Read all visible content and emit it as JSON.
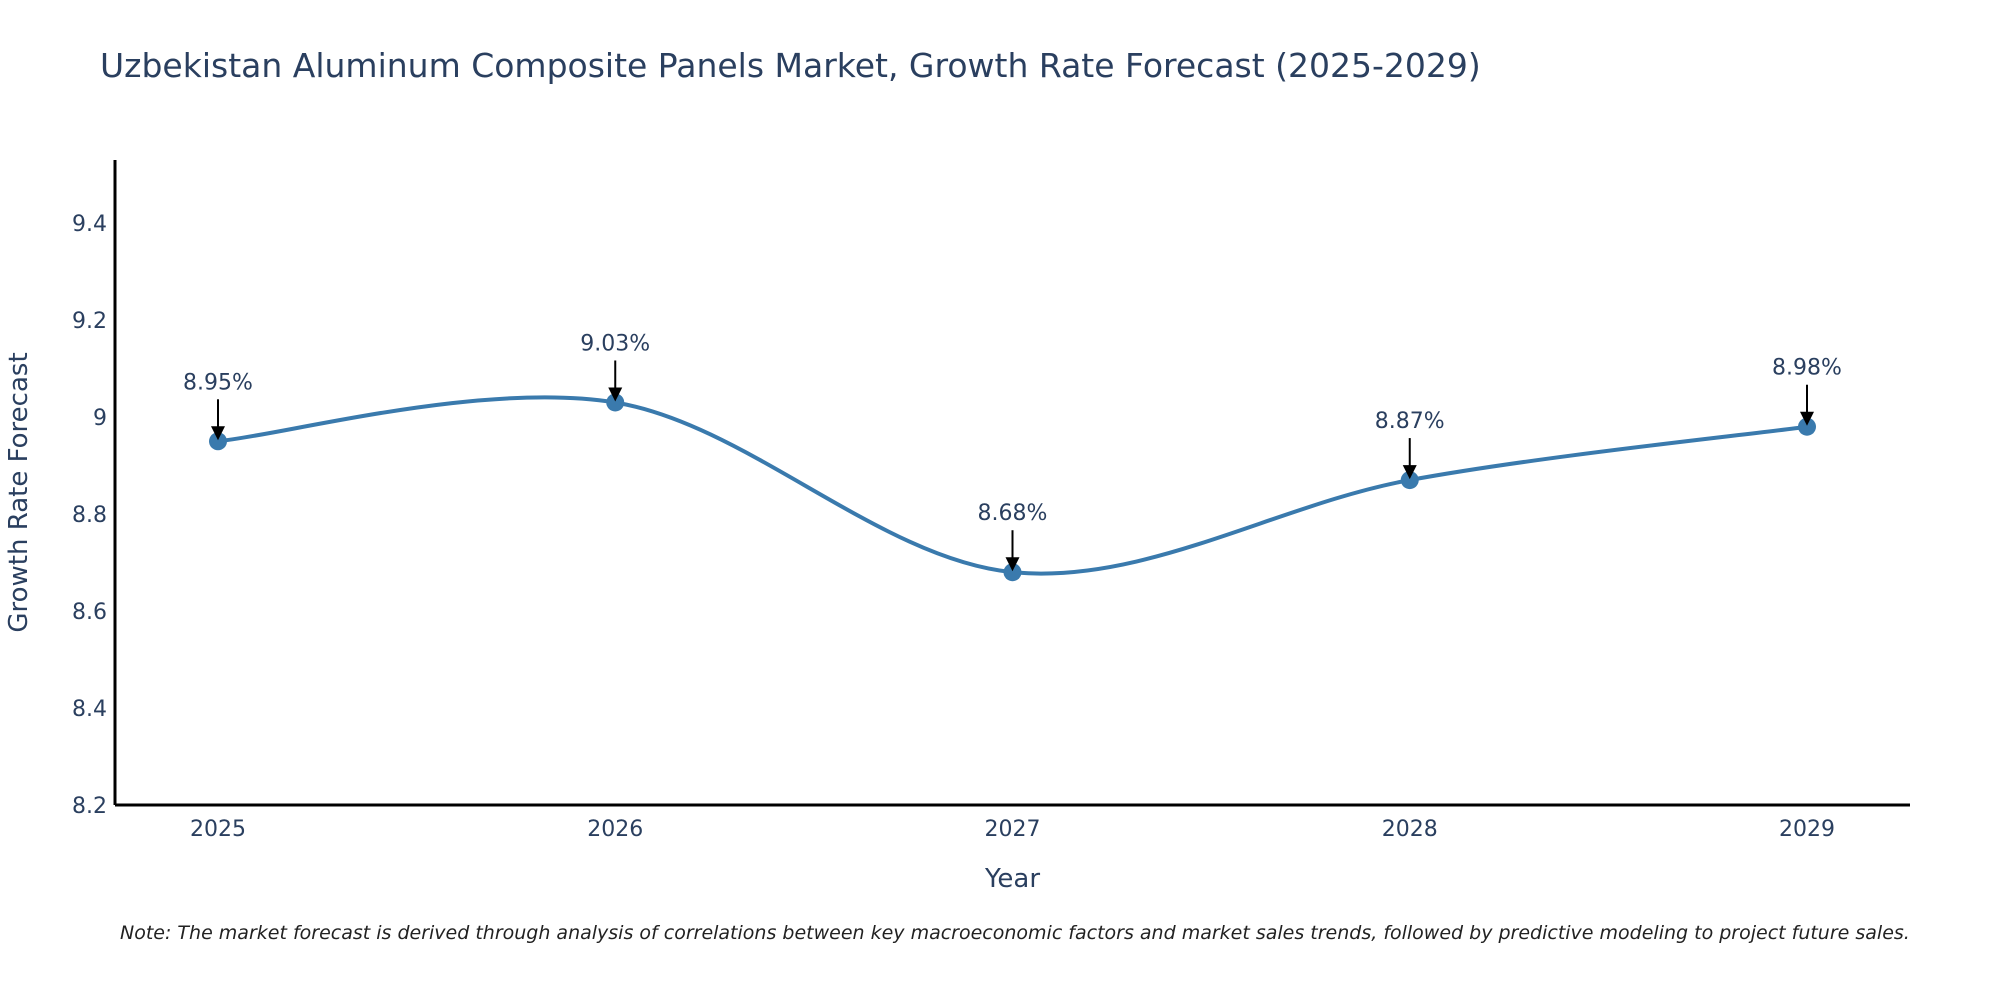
{
  "colors": {
    "line": "#3a7aad",
    "text": "#2a3f5f",
    "axis": "#000000",
    "arrow": "#000000"
  },
  "chart_data": {
    "type": "line",
    "title": "Uzbekistan Aluminum Composite Panels Market, Growth Rate Forecast (2025-2029)",
    "xlabel": "Year",
    "ylabel": "Growth Rate Forecast",
    "x": [
      "2025",
      "2026",
      "2027",
      "2028",
      "2029"
    ],
    "series": [
      {
        "name": "Growth Rate Forecast",
        "values": [
          8.95,
          9.03,
          8.68,
          8.87,
          8.98
        ]
      }
    ],
    "data_labels": [
      "8.95%",
      "9.03%",
      "8.68%",
      "8.87%",
      "8.98%"
    ],
    "ylim": [
      8.2,
      9.53
    ],
    "yticks": [
      8.2,
      8.4,
      8.6,
      8.8,
      9.0,
      9.2,
      9.4
    ],
    "ytick_labels": [
      "8.2",
      "8.4",
      "8.6",
      "8.8",
      "9",
      "9.2",
      "9.4"
    ],
    "grid": false,
    "note": "Note: The market forecast is derived through analysis of correlations between key macroeconomic factors and market sales trends, followed by predictive modeling to project future sales."
  }
}
